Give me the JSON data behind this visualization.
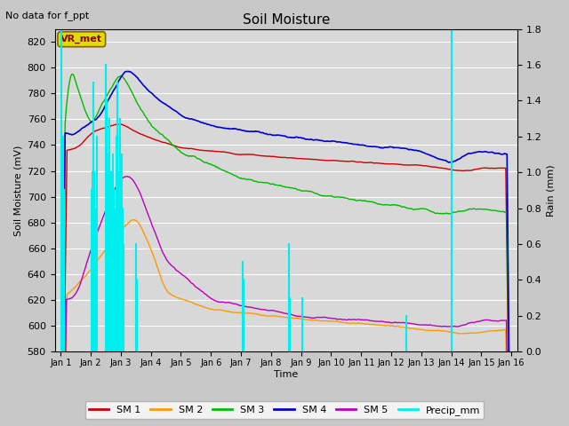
{
  "title": "Soil Moisture",
  "subtitle": "No data for f_ppt",
  "ylabel_left": "Soil Moisture (mV)",
  "ylabel_right": "Rain (mm)",
  "xlabel": "Time",
  "annotation": "VR_met",
  "ylim_left": [
    580,
    830
  ],
  "ylim_right": [
    0.0,
    1.8
  ],
  "fig_bg_color": "#c8c8c8",
  "plot_bg_color": "#d8d8d8",
  "colors": {
    "SM1": "#cc0000",
    "SM2": "#ff9900",
    "SM3": "#00bb00",
    "SM4": "#0000cc",
    "SM5": "#bb00bb",
    "Precip": "#00eeee"
  },
  "legend_labels": [
    "SM 1",
    "SM 2",
    "SM 3",
    "SM 4",
    "SM 5",
    "Precip_mm"
  ],
  "yticks_left": [
    580,
    600,
    620,
    640,
    660,
    680,
    700,
    720,
    740,
    760,
    780,
    800,
    820
  ],
  "yticks_right_vals": [
    0.0,
    0.2,
    0.4,
    0.6,
    0.8,
    1.0,
    1.2,
    1.4,
    1.6,
    1.8
  ],
  "precip_times": [
    0.02,
    0.04,
    0.06,
    0.08,
    0.1,
    0.12,
    1.02,
    1.05,
    1.08,
    1.1,
    1.13,
    1.16,
    1.19,
    1.5,
    1.53,
    1.56,
    1.59,
    1.62,
    1.65,
    1.68,
    1.71,
    1.74,
    1.77,
    1.8,
    1.83,
    1.86,
    1.89,
    1.92,
    1.95,
    1.98,
    2.01,
    2.04,
    2.07,
    2.1,
    2.5,
    2.53,
    6.05,
    6.1,
    7.6,
    7.63,
    8.05,
    11.5,
    13.02
  ],
  "precip_heights": [
    1.8,
    1.0,
    0.8,
    1.2,
    0.6,
    0.9,
    0.9,
    1.0,
    0.7,
    1.5,
    1.0,
    0.8,
    1.2,
    1.6,
    1.4,
    0.9,
    1.1,
    1.3,
    0.8,
    1.0,
    0.7,
    1.1,
    0.9,
    0.6,
    0.8,
    1.2,
    1.5,
    1.0,
    0.7,
    1.3,
    0.9,
    1.1,
    0.8,
    0.6,
    0.6,
    0.4,
    0.5,
    0.4,
    0.6,
    0.3,
    0.3,
    0.2,
    1.8
  ]
}
